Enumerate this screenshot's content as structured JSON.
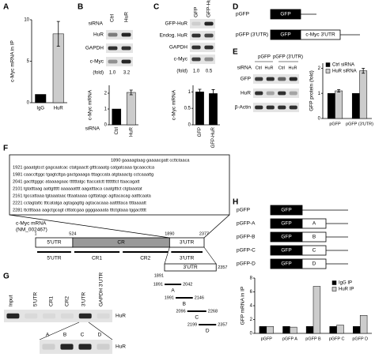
{
  "panels": {
    "A": {
      "label": "A",
      "chart": {
        "y_label": "c-Myc mRNA in IP",
        "categories": [
          "IgG",
          "HuR"
        ],
        "series": [
          {
            "colors": [
              "#000000",
              "#cccccc"
            ],
            "values": [
              1,
              8.3
            ],
            "errors": [
              null,
              1.5
            ]
          }
        ],
        "ylim": [
          0,
          10
        ],
        "yticks": [
          0,
          5,
          10
        ]
      }
    },
    "B": {
      "label": "B",
      "blot": {
        "row_label": "siRNA",
        "lanes": [
          "Ctrl",
          "HuR"
        ],
        "bands": [
          "HuR",
          "GAPDH",
          "c-Myc"
        ],
        "fold_label": "(fold)",
        "fold": [
          "1.0",
          "3.2"
        ]
      },
      "chart": {
        "y_label": "c-Myc mRNA",
        "x_label": "siRNA",
        "categories": [
          "Ctrl",
          "HuR"
        ],
        "series": [
          {
            "colors": [
              "#000000",
              "#cccccc"
            ],
            "values": [
              1,
              2.05
            ],
            "errors": [
              null,
              0.15
            ]
          }
        ],
        "ylim": [
          0,
          2.5
        ],
        "yticks": [
          0,
          1,
          2
        ]
      }
    },
    "C": {
      "label": "C",
      "blot": {
        "lanes": [
          "GFP",
          "GFP-HuR"
        ],
        "bands": [
          "GFP-HuR",
          "Endog. HuR",
          "GAPDH",
          "c-Myc"
        ],
        "fold_label": "(fold)",
        "fold": [
          "1.0",
          "0.5"
        ]
      },
      "chart": {
        "y_label": "c-Myc mRNA",
        "categories": [
          "GFP",
          "GFP-HuR"
        ],
        "series": [
          {
            "colors": [
              "#000000",
              "#000000"
            ],
            "values": [
              1,
              0.95
            ],
            "errors": [
              0.08,
              0.12
            ]
          }
        ],
        "ylim": [
          0,
          1.2
        ],
        "yticks": [
          0,
          0.5,
          1
        ]
      }
    },
    "D": {
      "label": "D",
      "constructs": [
        {
          "name": "pGFP",
          "boxes": [
            "GFP"
          ]
        },
        {
          "name": "pGFP (3'UTR)",
          "boxes": [
            "GFP",
            "c-Myc 3'UTR"
          ]
        }
      ]
    },
    "E": {
      "label": "E",
      "blot": {
        "groups": [
          "pGFP",
          "pGFP (3'UTR)"
        ],
        "row_label": "siRNA",
        "lanes": [
          "Ctrl",
          "HuR",
          "Ctrl",
          "HuR"
        ],
        "bands": [
          "GFP",
          "HuR",
          "β-Actin"
        ]
      },
      "chart": {
        "y_label": "GFP protein (fold)",
        "categories": [
          "pGFP",
          "pGFP (3'UTR)"
        ],
        "series": [
          {
            "name": "Ctrl siRNA",
            "color": "#000000",
            "values": [
              1,
              1
            ],
            "errors": [
              null,
              null
            ]
          },
          {
            "name": "HuR siRNA",
            "color": "#cccccc",
            "values": [
              1.1,
              1.9
            ],
            "errors": [
              0.05,
              0.1
            ]
          }
        ],
        "ylim": [
          0,
          2.2
        ],
        "yticks": [
          0,
          1,
          2
        ]
      }
    },
    "F": {
      "label": "F",
      "sequence": [
        "1890 gaaaagtaag gaaaacgatt ccttctaaca",
        "1921 gaaatgtcct gagcaatcac ctatgaactt gtttcaaatg catgatcaaa tgcaacctca",
        "1981 caaccttggc tgagtcttga gactgaaaga tttagccata atgtaaactg cctcaaattg",
        "2041 gactttgggc ataaaagaac ttttttatgc ttaccatctt ttttttttct ttaacagatt",
        "2101 tgtatttaag aattgttttt aaaaaatttt aagatttaca caatgtttct ctgtaaatat",
        "2161 tgccattaaa tgtaaataac tttaataaaa cgtttatagc agttacacag aatttcaata",
        "2221 cctagtattc tttcatatga agtagagttg agtacacaaa aatttttaca ttttaaaatt",
        "2281 ttcttttaaa aagctgcagt ctttatcgaa ggggaaaata tttctgtaaa tggacttttt"
      ],
      "map": {
        "name": "c-Myc mRNA",
        "accession": "(NM_002467)",
        "positions": [
          1,
          524,
          1890,
          2377
        ],
        "regions": [
          "5'UTR",
          "CR",
          "3'UTR"
        ],
        "subregions": [
          "5'UTR",
          "CR1",
          "CR2",
          "3'UTR"
        ],
        "utr_label": "3'UTR",
        "utr_start": 1891,
        "utr_end": 2357,
        "fragments": [
          {
            "name": "A",
            "start": 1891,
            "end": 2042
          },
          {
            "name": "B",
            "start": 1991,
            "end": 2146
          },
          {
            "name": "C",
            "start": 2096,
            "end": 2268
          },
          {
            "name": "D",
            "start": 2199,
            "end": 2357
          }
        ]
      }
    },
    "G": {
      "label": "G",
      "blot": {
        "lanes": [
          "Input",
          "5'UTR",
          "CR1",
          "CR2",
          "3'UTR",
          "GAPDH 3'UTR"
        ],
        "band": "HuR"
      },
      "zoom": {
        "lanes": [
          "A",
          "B",
          "C",
          "D"
        ],
        "band": "HuR"
      }
    },
    "H": {
      "label": "H",
      "constructs": [
        {
          "name": "pGFP",
          "boxes": [
            "GFP"
          ]
        },
        {
          "name": "pGFP-A",
          "boxes": [
            "GFP",
            "A"
          ]
        },
        {
          "name": "pGFP-B",
          "boxes": [
            "GFP",
            "B"
          ]
        },
        {
          "name": "pGFP-C",
          "boxes": [
            "GFP",
            "C"
          ]
        },
        {
          "name": "pGFP-D",
          "boxes": [
            "GFP",
            "D"
          ]
        }
      ],
      "chart": {
        "y_label": "GFP mRNA in IP",
        "categories": [
          "pGFP",
          "pGFP A",
          "pGFP B",
          "pGFP C",
          "pGFP D"
        ],
        "series": [
          {
            "name": "IgG IP",
            "color": "#000000",
            "values": [
              1,
              1,
              1,
              1,
              1
            ]
          },
          {
            "name": "HuR IP",
            "color": "#cccccc",
            "values": [
              1,
              0.9,
              6.8,
              1.2,
              2.6
            ]
          }
        ],
        "ylim": [
          0,
          8
        ],
        "yticks": [
          0,
          2,
          4,
          6,
          8
        ]
      }
    }
  }
}
